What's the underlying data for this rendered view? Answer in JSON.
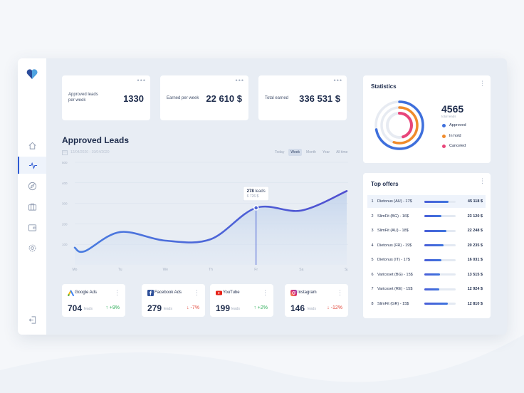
{
  "colors": {
    "accent": "#3e5fd6",
    "approved": "#3e6fdc",
    "in_hold": "#f08b2c",
    "canceled": "#e8457a",
    "positive": "#2fae5a",
    "negative": "#e2493d"
  },
  "sidebar": {
    "logo": "heart-logo",
    "items": [
      {
        "icon": "home-icon",
        "active": false
      },
      {
        "icon": "activity-icon",
        "active": true
      },
      {
        "icon": "compass-icon",
        "active": false
      },
      {
        "icon": "briefcase-icon",
        "active": false
      },
      {
        "icon": "wallet-icon",
        "active": false
      },
      {
        "icon": "gear-icon",
        "active": false
      }
    ],
    "logout_icon": "logout-icon"
  },
  "stats": [
    {
      "label": "Approved leads per week",
      "value": "1330"
    },
    {
      "label": "Earned per week",
      "value": "22 610 $"
    },
    {
      "label": "Total earned",
      "value": "336 531 $"
    }
  ],
  "leads": {
    "title": "Approved Leads",
    "date_range": "12/04/2020 - 19/04/2020",
    "periods": [
      "Today",
      "Week",
      "Month",
      "Year",
      "All time"
    ],
    "selected_period": "Week",
    "tooltip": {
      "value": "278",
      "unit": "leads",
      "amount": "6 726 $"
    }
  },
  "chart_data": {
    "type": "area",
    "x": [
      "Mo",
      "Tu",
      "We",
      "Th",
      "Fr",
      "Sa",
      "Su"
    ],
    "y_ticks": [
      "500",
      "400",
      "300",
      "200",
      "100"
    ],
    "ylim": [
      0,
      500
    ],
    "grid": true,
    "series": [
      {
        "values": [
          {
            "x": "Mo",
            "y": 70
          },
          {
            "x": "Tu",
            "y": 160
          },
          {
            "x": "We",
            "y": 118
          },
          {
            "x": "Th",
            "y": 125
          },
          {
            "x": "Fr",
            "y": 278
          },
          {
            "x": "Sa",
            "y": 265
          },
          {
            "x": "Su",
            "y": 360
          }
        ]
      }
    ],
    "highlight": {
      "x": "Fr",
      "y": 278
    }
  },
  "sources": [
    {
      "name": "Google Ads",
      "icon": "google-ads-icon",
      "value": "704",
      "unit": "leads",
      "change": "+9%",
      "direction": "up"
    },
    {
      "name": "Facebook Ads",
      "icon": "facebook-icon",
      "value": "279",
      "unit": "leads",
      "change": "-7%",
      "direction": "down"
    },
    {
      "name": "YouTube",
      "icon": "youtube-icon",
      "value": "199",
      "unit": "leads",
      "change": "+2%",
      "direction": "up"
    },
    {
      "name": "Instagram",
      "icon": "instagram-icon",
      "value": "146",
      "unit": "leads",
      "change": "-12%",
      "direction": "down"
    }
  ],
  "statistics": {
    "title": "Statistics",
    "total": "4565",
    "total_label": "total leads",
    "legend": [
      {
        "label": "Approved",
        "color": "#3e6fdc",
        "fraction": 0.72
      },
      {
        "label": "In hold",
        "color": "#f08b2c",
        "fraction": 0.55
      },
      {
        "label": "Canceled",
        "color": "#e8457a",
        "fraction": 0.45
      }
    ]
  },
  "top_offers": {
    "title": "Top offers",
    "rows": [
      {
        "rank": "1",
        "name": "Dietonus (AU) - 17$",
        "value": "45 118 $",
        "fraction": 0.78
      },
      {
        "rank": "2",
        "name": "SlimFit (BG) - 16$",
        "value": "23 120 $",
        "fraction": 0.55
      },
      {
        "rank": "3",
        "name": "SlimFit (AU) - 18$",
        "value": "22 248 $",
        "fraction": 0.7
      },
      {
        "rank": "4",
        "name": "Dietonus (FR) - 19$",
        "value": "20 235 $",
        "fraction": 0.62
      },
      {
        "rank": "5",
        "name": "Dietonus (IT) - 17$",
        "value": "16 031 $",
        "fraction": 0.55
      },
      {
        "rank": "6",
        "name": "Varicoset (BG) - 15$",
        "value": "13 515 $",
        "fraction": 0.5
      },
      {
        "rank": "7",
        "name": "Varicoset (RE) - 15$",
        "value": "12 924 $",
        "fraction": 0.47
      },
      {
        "rank": "8",
        "name": "SlimFit (GR) - 15$",
        "value": "12 810 $",
        "fraction": 0.75
      }
    ]
  }
}
